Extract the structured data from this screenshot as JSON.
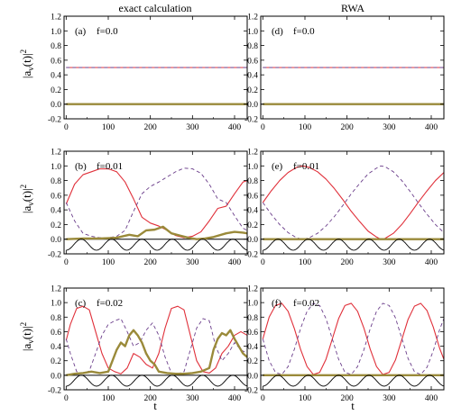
{
  "figure": {
    "column_titles": [
      "exact calculation",
      "RWA"
    ],
    "ylabel": "|a_v(t)|^2",
    "xlabel": "t"
  },
  "colors": {
    "solid_series": "#e0303a",
    "dashed_series": "#6a3d8a",
    "thick_series": "#9a8a3a",
    "oscillation": "#000000",
    "zero_line": "#000000"
  },
  "chart_data": [
    {
      "type": "line",
      "panel": "(a)",
      "f_label": "f=0.0",
      "column": 0,
      "row": 0,
      "xlim": [
        -5,
        430
      ],
      "ylim": [
        -0.2,
        1.2
      ],
      "xticks": [
        0,
        100,
        200,
        300,
        400
      ],
      "yticks": [
        -0.2,
        0.0,
        0.2,
        0.4,
        0.6,
        0.8,
        1.0,
        1.2
      ],
      "series": [
        {
          "style": "solid",
          "x": [
            0,
            430
          ],
          "y": [
            0.5,
            0.5
          ]
        },
        {
          "style": "dashed",
          "x": [
            0,
            430
          ],
          "y": [
            0.5,
            0.5
          ]
        },
        {
          "style": "thick",
          "x": [
            0,
            430
          ],
          "y": [
            0.0,
            0.0
          ]
        }
      ]
    },
    {
      "type": "line",
      "panel": "(b)",
      "f_label": "f=0.01",
      "column": 0,
      "row": 1,
      "xlim": [
        -5,
        430
      ],
      "ylim": [
        -0.2,
        1.2
      ],
      "xticks": [
        0,
        100,
        200,
        300,
        400
      ],
      "yticks": [
        -0.2,
        0.0,
        0.2,
        0.4,
        0.6,
        0.8,
        1.0,
        1.2
      ],
      "series": [
        {
          "style": "solid",
          "x": [
            0,
            20,
            40,
            60,
            80,
            100,
            120,
            140,
            160,
            180,
            200,
            220,
            240,
            260,
            280,
            300,
            320,
            340,
            360,
            380,
            400,
            420,
            430
          ],
          "y": [
            0.48,
            0.75,
            0.88,
            0.92,
            0.96,
            0.96,
            0.92,
            0.78,
            0.55,
            0.3,
            0.22,
            0.18,
            0.12,
            0.05,
            0.02,
            0.04,
            0.1,
            0.25,
            0.42,
            0.45,
            0.62,
            0.78,
            0.8
          ]
        },
        {
          "style": "dashed",
          "x": [
            0,
            20,
            40,
            60,
            80,
            100,
            120,
            140,
            160,
            180,
            200,
            220,
            240,
            260,
            280,
            300,
            320,
            340,
            360,
            380,
            400,
            420,
            430
          ],
          "y": [
            0.5,
            0.25,
            0.08,
            0.04,
            0.02,
            0.02,
            0.04,
            0.12,
            0.38,
            0.62,
            0.72,
            0.78,
            0.85,
            0.92,
            0.97,
            0.96,
            0.9,
            0.75,
            0.55,
            0.5,
            0.32,
            0.15,
            0.12
          ]
        },
        {
          "style": "thick",
          "x": [
            0,
            40,
            80,
            120,
            150,
            170,
            190,
            210,
            230,
            250,
            270,
            290,
            310,
            330,
            350,
            380,
            400,
            420,
            430
          ],
          "y": [
            0.0,
            0.01,
            0.01,
            0.02,
            0.06,
            0.04,
            0.12,
            0.13,
            0.17,
            0.08,
            0.05,
            0.02,
            0.0,
            0.01,
            0.03,
            0.08,
            0.1,
            0.09,
            0.08
          ]
        },
        {
          "style": "oscillation",
          "amplitude": 0.15,
          "period": 72,
          "x": [
            0,
            430
          ]
        }
      ]
    },
    {
      "type": "line",
      "panel": "(c)",
      "f_label": "f=0.02",
      "column": 0,
      "row": 2,
      "xlim": [
        -5,
        430
      ],
      "ylim": [
        -0.2,
        1.2
      ],
      "xticks": [
        0,
        100,
        200,
        300,
        400
      ],
      "yticks": [
        -0.2,
        0.0,
        0.2,
        0.4,
        0.6,
        0.8,
        1.0,
        1.2
      ],
      "series": [
        {
          "style": "solid",
          "x": [
            0,
            10,
            25,
            40,
            55,
            70,
            85,
            100,
            115,
            130,
            145,
            160,
            175,
            190,
            205,
            220,
            235,
            250,
            265,
            280,
            295,
            310,
            325,
            340,
            355,
            370,
            385,
            400,
            415,
            430
          ],
          "y": [
            0.48,
            0.7,
            0.92,
            0.95,
            0.9,
            0.6,
            0.3,
            0.1,
            0.05,
            0.02,
            0.1,
            0.3,
            0.25,
            0.15,
            0.1,
            0.3,
            0.65,
            0.92,
            0.95,
            0.9,
            0.55,
            0.2,
            0.05,
            0.03,
            0.1,
            0.3,
            0.4,
            0.55,
            0.6,
            0.55
          ]
        },
        {
          "style": "dashed",
          "x": [
            0,
            10,
            25,
            40,
            55,
            70,
            85,
            100,
            115,
            130,
            145,
            160,
            175,
            190,
            205,
            220,
            235,
            250,
            265,
            280,
            295,
            310,
            325,
            340,
            355,
            370,
            385,
            400,
            415,
            430
          ],
          "y": [
            0.5,
            0.3,
            0.05,
            0.02,
            0.06,
            0.3,
            0.55,
            0.7,
            0.75,
            0.78,
            0.6,
            0.4,
            0.45,
            0.62,
            0.72,
            0.55,
            0.25,
            0.03,
            0.02,
            0.05,
            0.35,
            0.65,
            0.78,
            0.75,
            0.4,
            0.2,
            0.3,
            0.45,
            0.35,
            0.3
          ]
        },
        {
          "style": "thick",
          "x": [
            0,
            20,
            40,
            60,
            80,
            100,
            110,
            120,
            130,
            140,
            150,
            160,
            170,
            180,
            190,
            200,
            210,
            220,
            240,
            260,
            280,
            300,
            320,
            340,
            350,
            360,
            370,
            380,
            390,
            400,
            410,
            420,
            430
          ],
          "y": [
            0.0,
            0.02,
            0.03,
            0.05,
            0.03,
            0.05,
            0.2,
            0.35,
            0.45,
            0.4,
            0.55,
            0.62,
            0.55,
            0.45,
            0.3,
            0.2,
            0.15,
            0.05,
            0.03,
            0.02,
            0.02,
            0.03,
            0.05,
            0.1,
            0.35,
            0.5,
            0.58,
            0.55,
            0.62,
            0.5,
            0.4,
            0.3,
            0.25
          ]
        },
        {
          "style": "oscillation",
          "amplitude": 0.15,
          "period": 72,
          "x": [
            0,
            430
          ]
        }
      ]
    },
    {
      "type": "line",
      "panel": "(d)",
      "f_label": "f=0.0",
      "column": 1,
      "row": 0,
      "xlim": [
        -5,
        430
      ],
      "ylim": [
        -0.2,
        1.2
      ],
      "xticks": [
        0,
        100,
        200,
        300,
        400
      ],
      "yticks": [
        -0.2,
        0.0,
        0.2,
        0.4,
        0.6,
        0.8,
        1.0,
        1.2
      ],
      "series": [
        {
          "style": "solid",
          "x": [
            0,
            430
          ],
          "y": [
            0.5,
            0.5
          ]
        },
        {
          "style": "dashed",
          "x": [
            0,
            430
          ],
          "y": [
            0.5,
            0.5
          ]
        },
        {
          "style": "thick",
          "x": [
            0,
            430
          ],
          "y": [
            0.0,
            0.0
          ]
        }
      ]
    },
    {
      "type": "line",
      "panel": "(e)",
      "f_label": "f=0.01",
      "column": 1,
      "row": 1,
      "xlim": [
        -5,
        430
      ],
      "ylim": [
        -0.2,
        1.2
      ],
      "xticks": [
        0,
        100,
        200,
        300,
        400
      ],
      "yticks": [
        -0.2,
        0.0,
        0.2,
        0.4,
        0.6,
        0.8,
        1.0,
        1.2
      ],
      "series": [
        {
          "style": "solid",
          "x": [
            0,
            20,
            40,
            60,
            80,
            95,
            110,
            130,
            150,
            170,
            190,
            210,
            230,
            250,
            270,
            280,
            290,
            310,
            330,
            350,
            370,
            390,
            410,
            430
          ],
          "y": [
            0.5,
            0.66,
            0.8,
            0.91,
            0.98,
            1.0,
            0.98,
            0.92,
            0.82,
            0.69,
            0.54,
            0.38,
            0.24,
            0.11,
            0.03,
            0.0,
            0.01,
            0.08,
            0.2,
            0.35,
            0.51,
            0.66,
            0.8,
            0.91
          ]
        },
        {
          "style": "dashed",
          "x": [
            0,
            20,
            40,
            60,
            80,
            95,
            110,
            130,
            150,
            170,
            190,
            210,
            230,
            250,
            270,
            280,
            290,
            310,
            330,
            350,
            370,
            390,
            410,
            430
          ],
          "y": [
            0.5,
            0.34,
            0.2,
            0.09,
            0.02,
            0.0,
            0.02,
            0.08,
            0.18,
            0.31,
            0.46,
            0.62,
            0.76,
            0.89,
            0.97,
            1.0,
            0.99,
            0.92,
            0.8,
            0.65,
            0.49,
            0.34,
            0.2,
            0.09
          ]
        },
        {
          "style": "thick",
          "x": [
            0,
            430
          ],
          "y": [
            0.0,
            0.0
          ]
        },
        {
          "style": "oscillation",
          "amplitude": 0.15,
          "period": 72,
          "x": [
            0,
            430
          ]
        }
      ]
    },
    {
      "type": "line",
      "panel": "(f)",
      "f_label": "f=0.02",
      "column": 1,
      "row": 2,
      "xlim": [
        -5,
        430
      ],
      "ylim": [
        -0.2,
        1.2
      ],
      "xticks": [
        0,
        100,
        200,
        300,
        400
      ],
      "yticks": [
        -0.2,
        0.0,
        0.2,
        0.4,
        0.6,
        0.8,
        1.0,
        1.2
      ],
      "series": [
        {
          "style": "solid",
          "x": [
            0,
            15,
            30,
            45,
            60,
            75,
            90,
            105,
            120,
            135,
            150,
            165,
            180,
            195,
            210,
            225,
            240,
            255,
            270,
            285,
            300,
            315,
            330,
            345,
            360,
            375,
            390,
            405,
            420,
            430
          ],
          "y": [
            0.5,
            0.8,
            0.96,
            0.99,
            0.88,
            0.64,
            0.35,
            0.12,
            0.01,
            0.04,
            0.22,
            0.5,
            0.78,
            0.96,
            0.99,
            0.88,
            0.65,
            0.36,
            0.12,
            0.01,
            0.04,
            0.21,
            0.49,
            0.77,
            0.95,
            0.99,
            0.89,
            0.66,
            0.37,
            0.22
          ]
        },
        {
          "style": "dashed",
          "x": [
            0,
            15,
            30,
            45,
            60,
            75,
            90,
            105,
            120,
            135,
            150,
            165,
            180,
            195,
            210,
            225,
            240,
            255,
            270,
            285,
            300,
            315,
            330,
            345,
            360,
            375,
            390,
            405,
            420,
            430
          ],
          "y": [
            0.5,
            0.2,
            0.04,
            0.01,
            0.12,
            0.36,
            0.65,
            0.88,
            0.99,
            0.96,
            0.78,
            0.5,
            0.22,
            0.04,
            0.01,
            0.12,
            0.35,
            0.64,
            0.88,
            0.99,
            0.96,
            0.79,
            0.51,
            0.23,
            0.05,
            0.01,
            0.11,
            0.34,
            0.63,
            0.78
          ]
        },
        {
          "style": "thick",
          "x": [
            0,
            430
          ],
          "y": [
            0.0,
            0.0
          ]
        },
        {
          "style": "oscillation",
          "amplitude": 0.15,
          "period": 72,
          "x": [
            0,
            430
          ]
        }
      ]
    }
  ]
}
